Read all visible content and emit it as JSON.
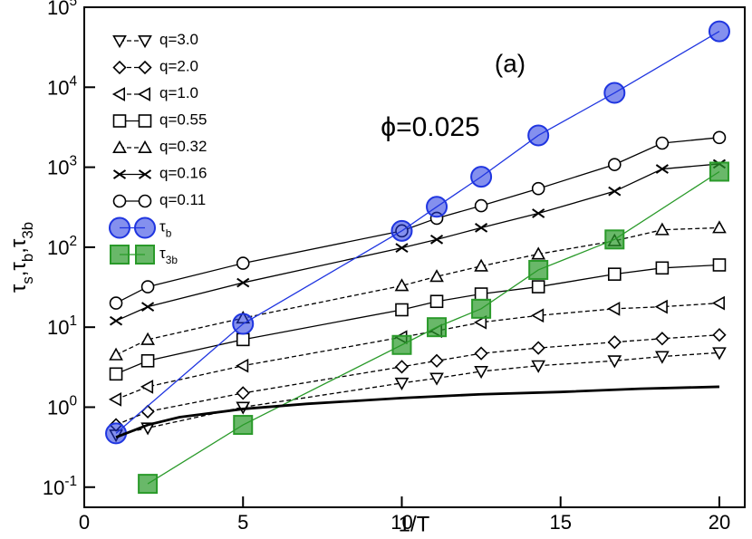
{
  "chart_data": {
    "type": "line",
    "x_label": "1/T",
    "y_label": "τ_s,τ_b,τ_3b",
    "annotations": [
      "(a)",
      "ϕ=0.025"
    ],
    "xlim": [
      0,
      20.8
    ],
    "xticks": [
      0,
      5,
      10,
      15,
      20
    ],
    "ylim": [
      0.056,
      100000
    ],
    "yticks": [
      {
        "value": 0.1,
        "label": "10^-1"
      },
      {
        "value": 1,
        "label": "10^0"
      },
      {
        "value": 10,
        "label": "10^1"
      },
      {
        "value": 100,
        "label": "10^2"
      },
      {
        "value": 1000,
        "label": "10^3"
      },
      {
        "value": 10000,
        "label": "10^4"
      },
      {
        "value": 100000,
        "label": "10^5"
      }
    ],
    "log_y": true,
    "legend": "upper left",
    "series": [
      {
        "name": "q=3.0",
        "color": "#000000",
        "marker": "tri-down",
        "dashed": true,
        "x": [
          1,
          2,
          5,
          10,
          11.1,
          12.5,
          14.3,
          16.7,
          18.2,
          20
        ],
        "values": [
          0.45,
          0.55,
          1.0,
          2.0,
          2.3,
          2.8,
          3.3,
          3.8,
          4.3,
          4.8
        ]
      },
      {
        "name": "q=2.0",
        "color": "#000000",
        "marker": "diamond",
        "dashed": true,
        "x": [
          1,
          2,
          5,
          10,
          11.1,
          12.5,
          14.3,
          16.7,
          18.2,
          20
        ],
        "values": [
          0.6,
          0.88,
          1.5,
          3.2,
          3.8,
          4.7,
          5.5,
          6.5,
          7.2,
          8
        ]
      },
      {
        "name": "q=1.0",
        "color": "#000000",
        "marker": "tri-left",
        "dashed": true,
        "x": [
          1,
          2,
          5,
          10,
          11.1,
          12.5,
          14.3,
          16.7,
          18.2,
          20
        ],
        "values": [
          1.25,
          1.8,
          3.3,
          7.5,
          9,
          11.5,
          14,
          17,
          18,
          20
        ]
      },
      {
        "name": "q=0.55",
        "color": "#000000",
        "marker": "square",
        "dashed": false,
        "x": [
          1,
          2,
          5,
          10,
          11.1,
          12.5,
          14.3,
          16.7,
          18.2,
          20
        ],
        "values": [
          2.6,
          3.8,
          7,
          16.5,
          21,
          26,
          32,
          46,
          55,
          60
        ]
      },
      {
        "name": "q=0.32",
        "color": "#000000",
        "marker": "tri-up",
        "dashed": true,
        "x": [
          1,
          2,
          5,
          10,
          11.1,
          12.5,
          14.3,
          16.7,
          18.2,
          20
        ],
        "values": [
          4.5,
          7,
          13,
          33,
          43,
          58,
          82,
          120,
          165,
          175
        ]
      },
      {
        "name": "q=0.16",
        "color": "#000000",
        "marker": "x",
        "dashed": false,
        "x": [
          1,
          2,
          5,
          10,
          11.1,
          12.5,
          14.3,
          16.7,
          18.2,
          20
        ],
        "values": [
          12,
          18,
          36,
          98,
          125,
          175,
          265,
          500,
          950,
          1100
        ]
      },
      {
        "name": "q=0.11",
        "color": "#000000",
        "marker": "circle",
        "dashed": false,
        "x": [
          1,
          2,
          5,
          10,
          11.1,
          12.5,
          14.3,
          16.7,
          18.2,
          20
        ],
        "values": [
          20,
          32,
          63,
          160,
          230,
          330,
          540,
          1080,
          2000,
          2350
        ]
      },
      {
        "name": "τ_b",
        "color": "#1f35e0",
        "marker": "big-circle",
        "dashed": false,
        "x": [
          1,
          5,
          10,
          11.1,
          12.5,
          14.3,
          16.7,
          20
        ],
        "values": [
          0.47,
          11,
          160,
          320,
          760,
          2500,
          8500,
          50000
        ]
      },
      {
        "name": "τ_3b",
        "color": "#2a9a2a",
        "marker": "big-square",
        "dashed": false,
        "x": [
          2,
          5,
          10,
          11.1,
          12.5,
          14.3,
          16.7,
          20
        ],
        "values": [
          0.11,
          0.6,
          6,
          10,
          17,
          52,
          125,
          880
        ]
      },
      {
        "color": "#000000",
        "marker": "none",
        "dashed": false,
        "x": [
          1,
          2,
          3,
          5,
          7,
          10,
          12.5,
          15,
          17.5,
          20
        ],
        "values": [
          0.42,
          0.6,
          0.75,
          0.95,
          1.1,
          1.3,
          1.45,
          1.55,
          1.7,
          1.8
        ]
      }
    ]
  }
}
